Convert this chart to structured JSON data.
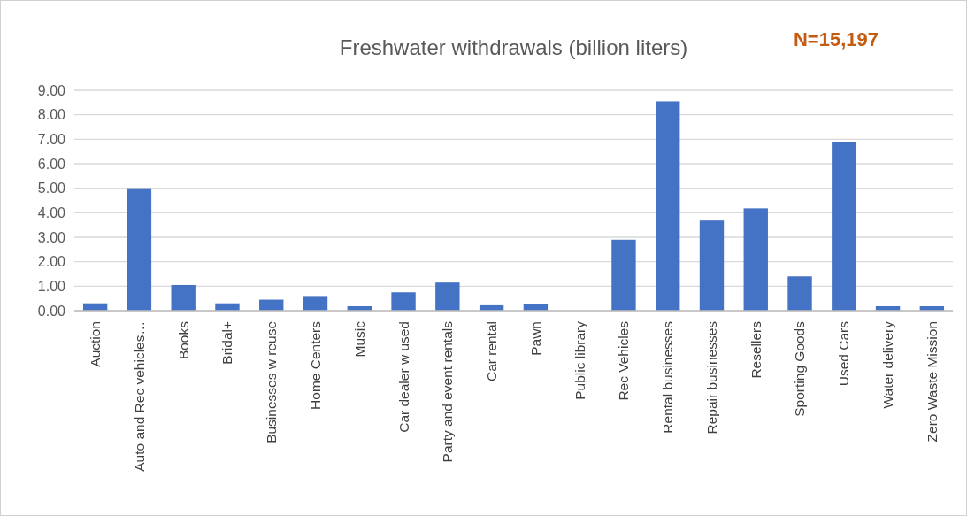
{
  "chart_data": {
    "type": "bar",
    "title": "Freshwater withdrawals (billion liters)",
    "annotations": [
      "N=15,197"
    ],
    "categories": [
      "Auction",
      "Auto and Rec vehicles…",
      "Books",
      "Bridal+",
      "Businesses w reuse",
      "Home Centers",
      "Music",
      "Car dealer w used",
      "Party and event rentals",
      "Car rental",
      "Pawn",
      "Public library",
      "Rec Vehicles",
      "Rental businesses",
      "Repair businesses",
      "Resellers",
      "Sporting Goods",
      "Used Cars",
      "Water delivery",
      "Zero Waste Mission"
    ],
    "values": [
      0.3,
      5.0,
      1.05,
      0.3,
      0.45,
      0.6,
      0.18,
      0.75,
      1.15,
      0.22,
      0.28,
      0,
      2.9,
      8.55,
      3.68,
      4.18,
      1.4,
      6.88,
      0.18,
      0.18
    ],
    "color": "#4472c4",
    "ylim": [
      0,
      9
    ],
    "yticks": [
      {
        "value": 0,
        "label": "0.00"
      },
      {
        "value": 1,
        "label": "1.00"
      },
      {
        "value": 2,
        "label": "2.00"
      },
      {
        "value": 3,
        "label": "3.00"
      },
      {
        "value": 4,
        "label": "4.00"
      },
      {
        "value": 5,
        "label": "5.00"
      },
      {
        "value": 6,
        "label": "6.00"
      },
      {
        "value": 7,
        "label": "7.00"
      },
      {
        "value": 8,
        "label": "8.00"
      },
      {
        "value": 9,
        "label": "9.00"
      }
    ],
    "grid": "y"
  }
}
